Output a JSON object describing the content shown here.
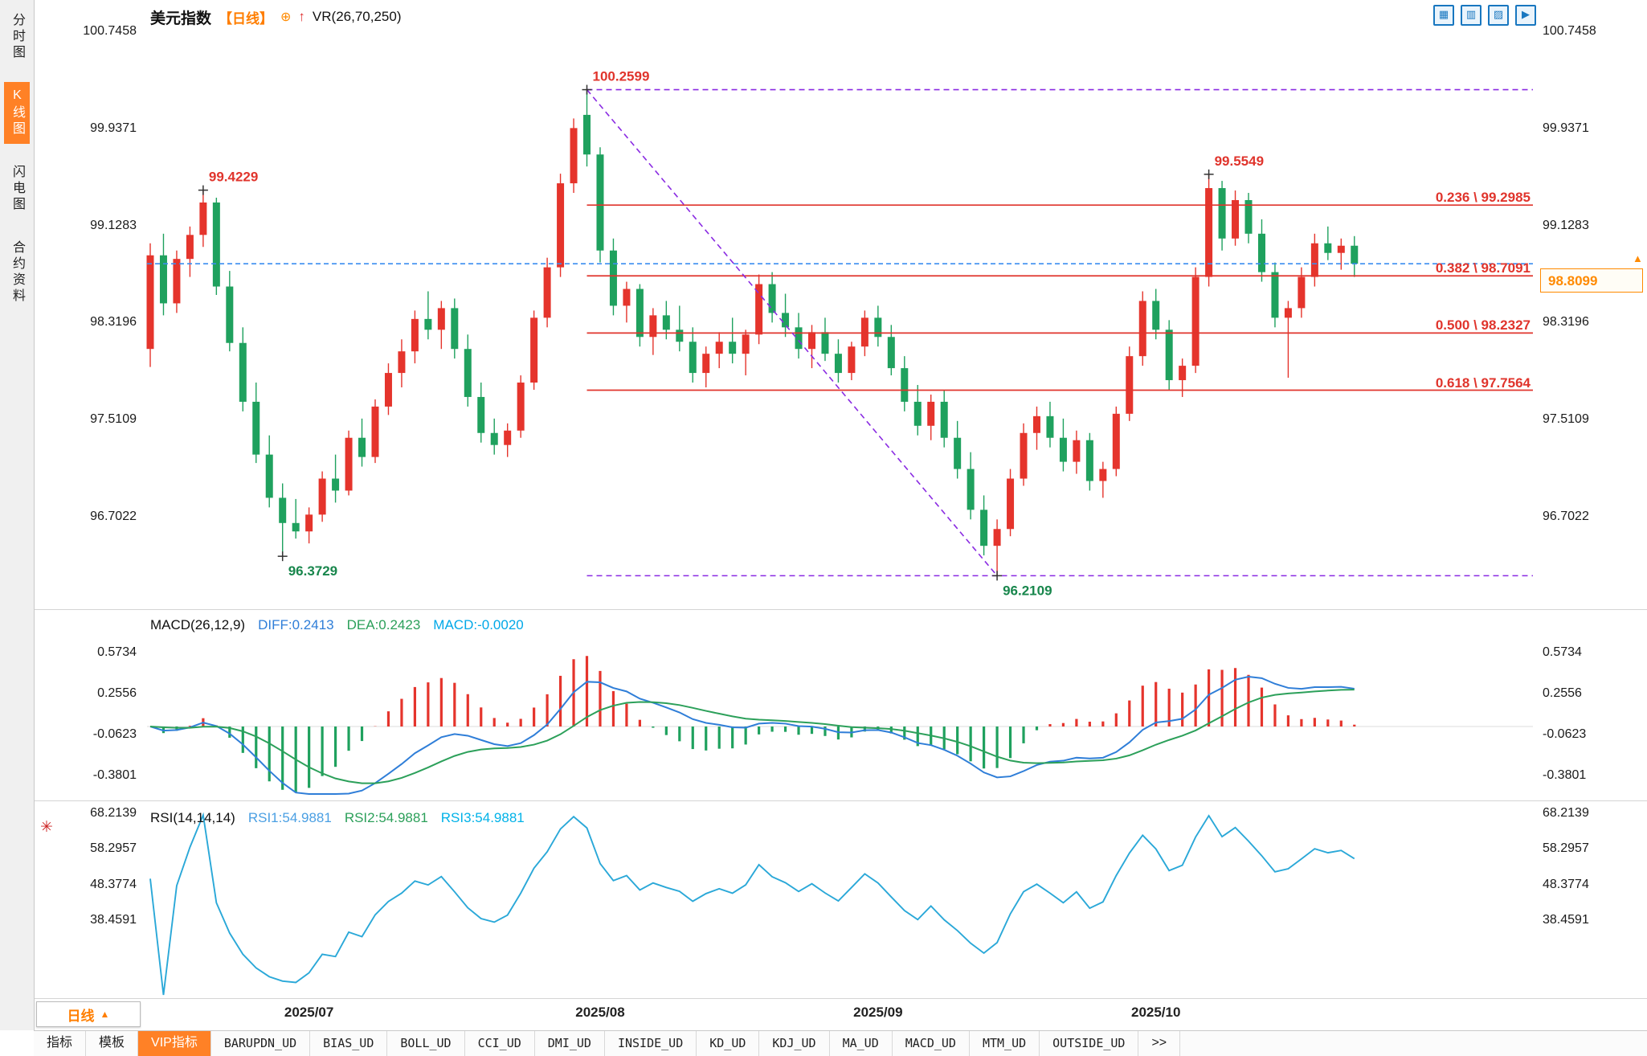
{
  "header": {
    "symbol": "美元指数",
    "period_tag": "【日线】",
    "add_icon": "⊕",
    "trend_icon": "↑",
    "indicator_label": "VR(26,70,250)"
  },
  "toolbar": {
    "icons": [
      {
        "id": "layout-grid",
        "glyph": "▦"
      },
      {
        "id": "layout-split",
        "glyph": "▥"
      },
      {
        "id": "layout-chart",
        "glyph": "▨"
      },
      {
        "id": "layout-next",
        "glyph": "▶"
      }
    ]
  },
  "sidebar": {
    "items": [
      {
        "id": "time-share-chart",
        "label": "分时图",
        "active": false
      },
      {
        "id": "kline-chart",
        "label": "K线图",
        "active": true
      },
      {
        "id": "lightning-chart",
        "label": "闪电图",
        "active": false
      },
      {
        "id": "contract-info",
        "label": "合约资料",
        "active": false
      }
    ]
  },
  "price_marker": {
    "value": "98.8099",
    "price": 98.8099,
    "arrow": "▲"
  },
  "fib_levels": [
    {
      "label": "0.236 \\ 99.2985",
      "price": 99.2985
    },
    {
      "label": "0.382 \\ 98.7091",
      "price": 98.7091
    },
    {
      "label": "0.500 \\ 98.2327",
      "price": 98.2327
    },
    {
      "label": "0.618 \\ 97.7564",
      "price": 97.7564
    }
  ],
  "macd_panel": {
    "title": "MACD(26,12,9)",
    "diff": "DIFF:0.2413",
    "dea": "DEA:0.2423",
    "macd": "MACD:-0.0020",
    "axis_ticks": [
      0.5734,
      0.2556,
      -0.0623,
      -0.3801
    ]
  },
  "rsi_panel": {
    "title": "RSI(14,14,14)",
    "rsi1": "RSI1:54.9881",
    "rsi2": "RSI2:54.9881",
    "rsi3": "RSI3:54.9881",
    "axis_ticks": [
      68.2139,
      58.2957,
      48.3774,
      38.4591
    ],
    "gear_icon": "✳"
  },
  "period_selector": {
    "label": "日线",
    "arrow": "▲"
  },
  "bottom_tabs": [
    {
      "id": "indicators",
      "label": "指标"
    },
    {
      "id": "templates",
      "label": "模板"
    },
    {
      "id": "vip-indicators",
      "label": "VIP指标",
      "active": true
    },
    {
      "id": "barupdn-ud",
      "label": "BARUPDN_UD",
      "code": true
    },
    {
      "id": "bias-ud",
      "label": "BIAS_UD",
      "code": true
    },
    {
      "id": "boll-ud",
      "label": "BOLL_UD",
      "code": true
    },
    {
      "id": "cci-ud",
      "label": "CCI_UD",
      "code": true
    },
    {
      "id": "dmi-ud",
      "label": "DMI_UD",
      "code": true
    },
    {
      "id": "inside-ud",
      "label": "INSIDE_UD",
      "code": true
    },
    {
      "id": "kd-ud",
      "label": "KD_UD",
      "code": true
    },
    {
      "id": "kdj-ud",
      "label": "KDJ_UD",
      "code": true
    },
    {
      "id": "ma-ud",
      "label": "MA_UD",
      "code": true
    },
    {
      "id": "macd-ud",
      "label": "MACD_UD",
      "code": true
    },
    {
      "id": "mtm-ud",
      "label": "MTM_UD",
      "code": true
    },
    {
      "id": "outside-ud",
      "label": "OUTSIDE_UD",
      "code": true
    },
    {
      "id": "more-tabs",
      "label": ">>"
    }
  ],
  "colors": {
    "bull": "#e5342c",
    "bear": "#1fa15e",
    "fib": "#e0342c",
    "trend": "#8a2be2",
    "price_line": "#3b8df0",
    "accent_orange": "#ff8126",
    "diff_line": "#2f7ed8",
    "dea_line": "#2ca05a",
    "rsi_line": "#2aa8d8",
    "annotation_high": "#e0342c",
    "annotation_low": "#18864c",
    "zero_line": "#dddddd"
  },
  "chart_data": {
    "type": "candlestick",
    "title": "美元指数 日线 (US Dollar Index, Daily)",
    "y_axis_ticks": [
      100.7458,
      99.9371,
      99.1283,
      98.3196,
      97.5109,
      96.7022
    ],
    "x_axis_labels": [
      {
        "text": "2025/07",
        "bar": 12
      },
      {
        "text": "2025/08",
        "bar": 34
      },
      {
        "text": "2025/09",
        "bar": 55
      },
      {
        "text": "2025/10",
        "bar": 76
      }
    ],
    "candles": [
      [
        98.1,
        98.98,
        97.95,
        98.88
      ],
      [
        98.88,
        99.06,
        98.38,
        98.48
      ],
      [
        98.48,
        98.92,
        98.4,
        98.85
      ],
      [
        98.85,
        99.12,
        98.7,
        99.05
      ],
      [
        99.05,
        99.4229,
        98.95,
        99.32
      ],
      [
        99.32,
        99.36,
        98.55,
        98.62
      ],
      [
        98.62,
        98.75,
        98.08,
        98.15
      ],
      [
        98.15,
        98.28,
        97.58,
        97.66
      ],
      [
        97.66,
        97.82,
        97.15,
        97.22
      ],
      [
        97.22,
        97.38,
        96.78,
        96.86
      ],
      [
        96.86,
        96.98,
        96.3729,
        96.65
      ],
      [
        96.65,
        96.85,
        96.52,
        96.58
      ],
      [
        96.58,
        96.78,
        96.48,
        96.72
      ],
      [
        96.72,
        97.08,
        96.66,
        97.02
      ],
      [
        97.02,
        97.22,
        96.82,
        96.92
      ],
      [
        96.92,
        97.42,
        96.88,
        97.36
      ],
      [
        97.36,
        97.52,
        97.12,
        97.2
      ],
      [
        97.2,
        97.68,
        97.15,
        97.62
      ],
      [
        97.62,
        97.98,
        97.55,
        97.9
      ],
      [
        97.9,
        98.18,
        97.78,
        98.08
      ],
      [
        98.08,
        98.42,
        97.98,
        98.35
      ],
      [
        98.35,
        98.58,
        98.18,
        98.26
      ],
      [
        98.26,
        98.5,
        98.1,
        98.44
      ],
      [
        98.44,
        98.52,
        98.02,
        98.1
      ],
      [
        98.1,
        98.22,
        97.62,
        97.7
      ],
      [
        97.7,
        97.82,
        97.32,
        97.4
      ],
      [
        97.4,
        97.52,
        97.22,
        97.3
      ],
      [
        97.3,
        97.48,
        97.2,
        97.42
      ],
      [
        97.42,
        97.88,
        97.36,
        97.82
      ],
      [
        97.82,
        98.42,
        97.76,
        98.36
      ],
      [
        98.36,
        98.86,
        98.28,
        98.78
      ],
      [
        98.78,
        99.56,
        98.7,
        99.48
      ],
      [
        99.48,
        100.02,
        99.4,
        99.94
      ],
      [
        100.05,
        100.2599,
        99.62,
        99.72
      ],
      [
        99.72,
        99.78,
        98.82,
        98.92
      ],
      [
        98.92,
        99.02,
        98.38,
        98.46
      ],
      [
        98.46,
        98.66,
        98.32,
        98.6
      ],
      [
        98.6,
        98.64,
        98.12,
        98.2
      ],
      [
        98.2,
        98.44,
        98.05,
        98.38
      ],
      [
        98.38,
        98.5,
        98.18,
        98.26
      ],
      [
        98.26,
        98.46,
        98.08,
        98.16
      ],
      [
        98.16,
        98.28,
        97.82,
        97.9
      ],
      [
        97.9,
        98.12,
        97.78,
        98.06
      ],
      [
        98.06,
        98.24,
        97.94,
        98.16
      ],
      [
        98.16,
        98.36,
        97.98,
        98.06
      ],
      [
        98.06,
        98.26,
        97.88,
        98.22
      ],
      [
        98.22,
        98.72,
        98.14,
        98.64
      ],
      [
        98.64,
        98.74,
        98.32,
        98.4
      ],
      [
        98.4,
        98.56,
        98.2,
        98.28
      ],
      [
        98.28,
        98.4,
        98.02,
        98.1
      ],
      [
        98.1,
        98.3,
        97.94,
        98.24
      ],
      [
        98.24,
        98.36,
        98.0,
        98.06
      ],
      [
        98.06,
        98.18,
        97.82,
        97.9
      ],
      [
        97.9,
        98.16,
        97.84,
        98.12
      ],
      [
        98.12,
        98.42,
        98.04,
        98.36
      ],
      [
        98.36,
        98.46,
        98.12,
        98.2
      ],
      [
        98.2,
        98.3,
        97.88,
        97.94
      ],
      [
        97.94,
        98.04,
        97.58,
        97.66
      ],
      [
        97.66,
        97.8,
        97.38,
        97.46
      ],
      [
        97.46,
        97.72,
        97.34,
        97.66
      ],
      [
        97.66,
        97.76,
        97.28,
        97.36
      ],
      [
        97.36,
        97.5,
        97.02,
        97.1
      ],
      [
        97.1,
        97.24,
        96.68,
        96.76
      ],
      [
        96.76,
        96.88,
        96.38,
        96.46
      ],
      [
        96.46,
        96.68,
        96.2109,
        96.6
      ],
      [
        96.6,
        97.1,
        96.54,
        97.02
      ],
      [
        97.02,
        97.48,
        96.96,
        97.4
      ],
      [
        97.4,
        97.62,
        97.26,
        97.54
      ],
      [
        97.54,
        97.66,
        97.28,
        97.36
      ],
      [
        97.36,
        97.52,
        97.08,
        97.16
      ],
      [
        97.16,
        97.42,
        97.06,
        97.34
      ],
      [
        97.34,
        97.4,
        96.92,
        97.0
      ],
      [
        97.0,
        97.16,
        96.86,
        97.1
      ],
      [
        97.1,
        97.62,
        97.04,
        97.56
      ],
      [
        97.56,
        98.12,
        97.5,
        98.04
      ],
      [
        98.04,
        98.58,
        97.96,
        98.5
      ],
      [
        98.5,
        98.6,
        98.18,
        98.26
      ],
      [
        98.26,
        98.34,
        97.76,
        97.84
      ],
      [
        97.84,
        98.02,
        97.7,
        97.96
      ],
      [
        97.96,
        98.78,
        97.9,
        98.7
      ],
      [
        98.7,
        99.5549,
        98.62,
        99.44
      ],
      [
        99.44,
        99.5,
        98.92,
        99.02
      ],
      [
        99.02,
        99.42,
        98.96,
        99.34
      ],
      [
        99.34,
        99.4,
        98.98,
        99.06
      ],
      [
        99.06,
        99.18,
        98.66,
        98.74
      ],
      [
        98.74,
        98.82,
        98.28,
        98.36
      ],
      [
        98.36,
        98.5,
        97.86,
        98.44
      ],
      [
        98.44,
        98.78,
        98.36,
        98.7
      ],
      [
        98.7,
        99.06,
        98.62,
        98.98
      ],
      [
        98.98,
        99.12,
        98.84,
        98.9
      ],
      [
        98.9,
        99.02,
        98.76,
        98.96
      ],
      [
        98.96,
        99.04,
        98.7,
        98.8099
      ]
    ],
    "marked_points": [
      {
        "bar": 4,
        "price": 99.4229,
        "label": "99.4229",
        "type": "high"
      },
      {
        "bar": 10,
        "price": 96.3729,
        "label": "96.3729",
        "type": "low"
      },
      {
        "bar": 33,
        "price": 100.2599,
        "label": "100.2599",
        "type": "high"
      },
      {
        "bar": 64,
        "price": 96.2109,
        "label": "96.2109",
        "type": "low"
      },
      {
        "bar": 80,
        "price": 99.5549,
        "label": "99.5549",
        "type": "high"
      }
    ],
    "trendline": {
      "from": {
        "bar": 33,
        "price": 100.2599
      },
      "to": {
        "bar": 64,
        "price": 96.2109
      }
    },
    "horizontal_guides": [
      {
        "price": 100.2599,
        "style": "dashed-purple"
      },
      {
        "price": 96.2109,
        "style": "dashed-purple"
      },
      {
        "price": 98.8099,
        "style": "dashed-blue"
      }
    ],
    "macd": {
      "slow": 26,
      "fast": 12,
      "signal": 9,
      "diff": 0.2413,
      "dea": 0.2423,
      "hist": -0.002
    },
    "rsi": {
      "period": 14,
      "value": 54.9881
    }
  }
}
